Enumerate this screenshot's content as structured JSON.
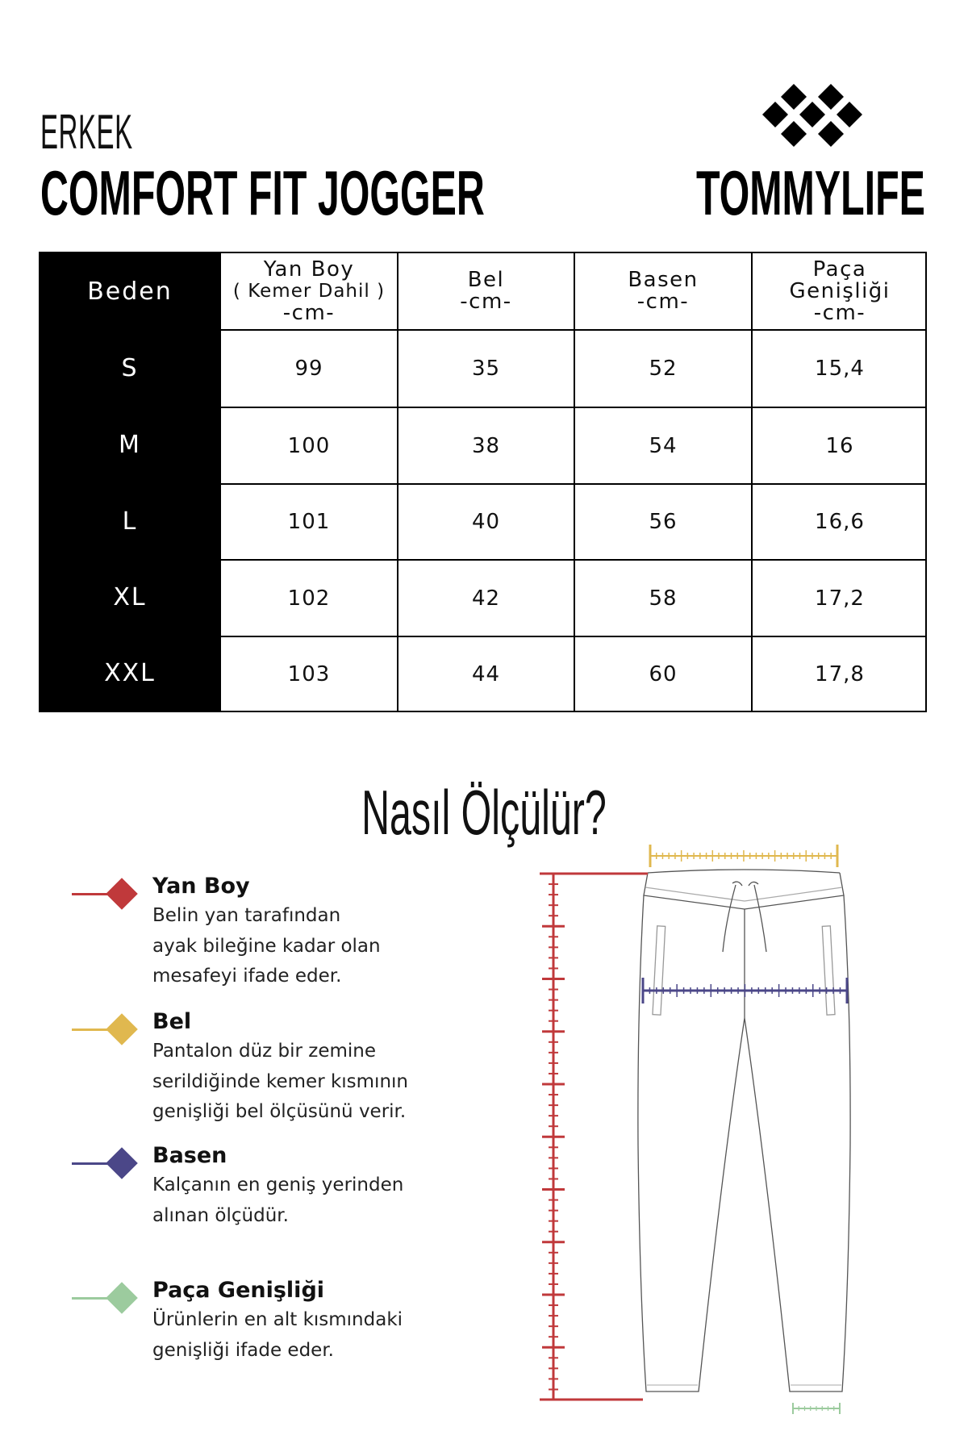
{
  "header": {
    "category": "ERKEK",
    "product": "COMFORT FIT JOGGER",
    "brand": "TOMMYLIFE"
  },
  "table": {
    "size_header": "Beden",
    "columns": [
      {
        "line1": "Yan Boy",
        "line2": "( Kemer Dahil )",
        "unit": "-cm-"
      },
      {
        "line1": "Bel",
        "line2": "",
        "unit": "-cm-"
      },
      {
        "line1": "Basen",
        "line2": "",
        "unit": "-cm-"
      },
      {
        "line1": "Paça",
        "line2": "Genişliği",
        "unit": "-cm-"
      }
    ],
    "rows": [
      {
        "size": "S",
        "values": [
          "99",
          "35",
          "52",
          "15,4"
        ]
      },
      {
        "size": "M",
        "values": [
          "100",
          "38",
          "54",
          "16"
        ]
      },
      {
        "size": "L",
        "values": [
          "101",
          "40",
          "56",
          "16,6"
        ]
      },
      {
        "size": "XL",
        "values": [
          "102",
          "42",
          "58",
          "17,2"
        ]
      },
      {
        "size": "XXL",
        "values": [
          "103",
          "44",
          "60",
          "17,8"
        ]
      }
    ]
  },
  "guide": {
    "title": "Nasıl Ölçülür?",
    "items": [
      {
        "title": "Yan Boy",
        "color": "#c0393b",
        "lines": [
          "Belin yan tarafından",
          "ayak bileğine kadar olan",
          "mesafeyi ifade eder."
        ]
      },
      {
        "title": "Bel",
        "color": "#e0b84f",
        "lines": [
          "Pantalon düz bir zemine",
          "serildiğinde kemer kısmının",
          "genişliği bel ölçüsünü verir."
        ]
      },
      {
        "title": "Basen",
        "color": "#4b4788",
        "lines": [
          "Kalçanın en geniş yerinden",
          "alınan ölçüdür."
        ]
      },
      {
        "title": "Paça Genişliği",
        "color": "#9ccb9e",
        "lines": [
          "Ürünlerin en alt kısmındaki",
          "genişliği ifade eder."
        ]
      }
    ]
  }
}
